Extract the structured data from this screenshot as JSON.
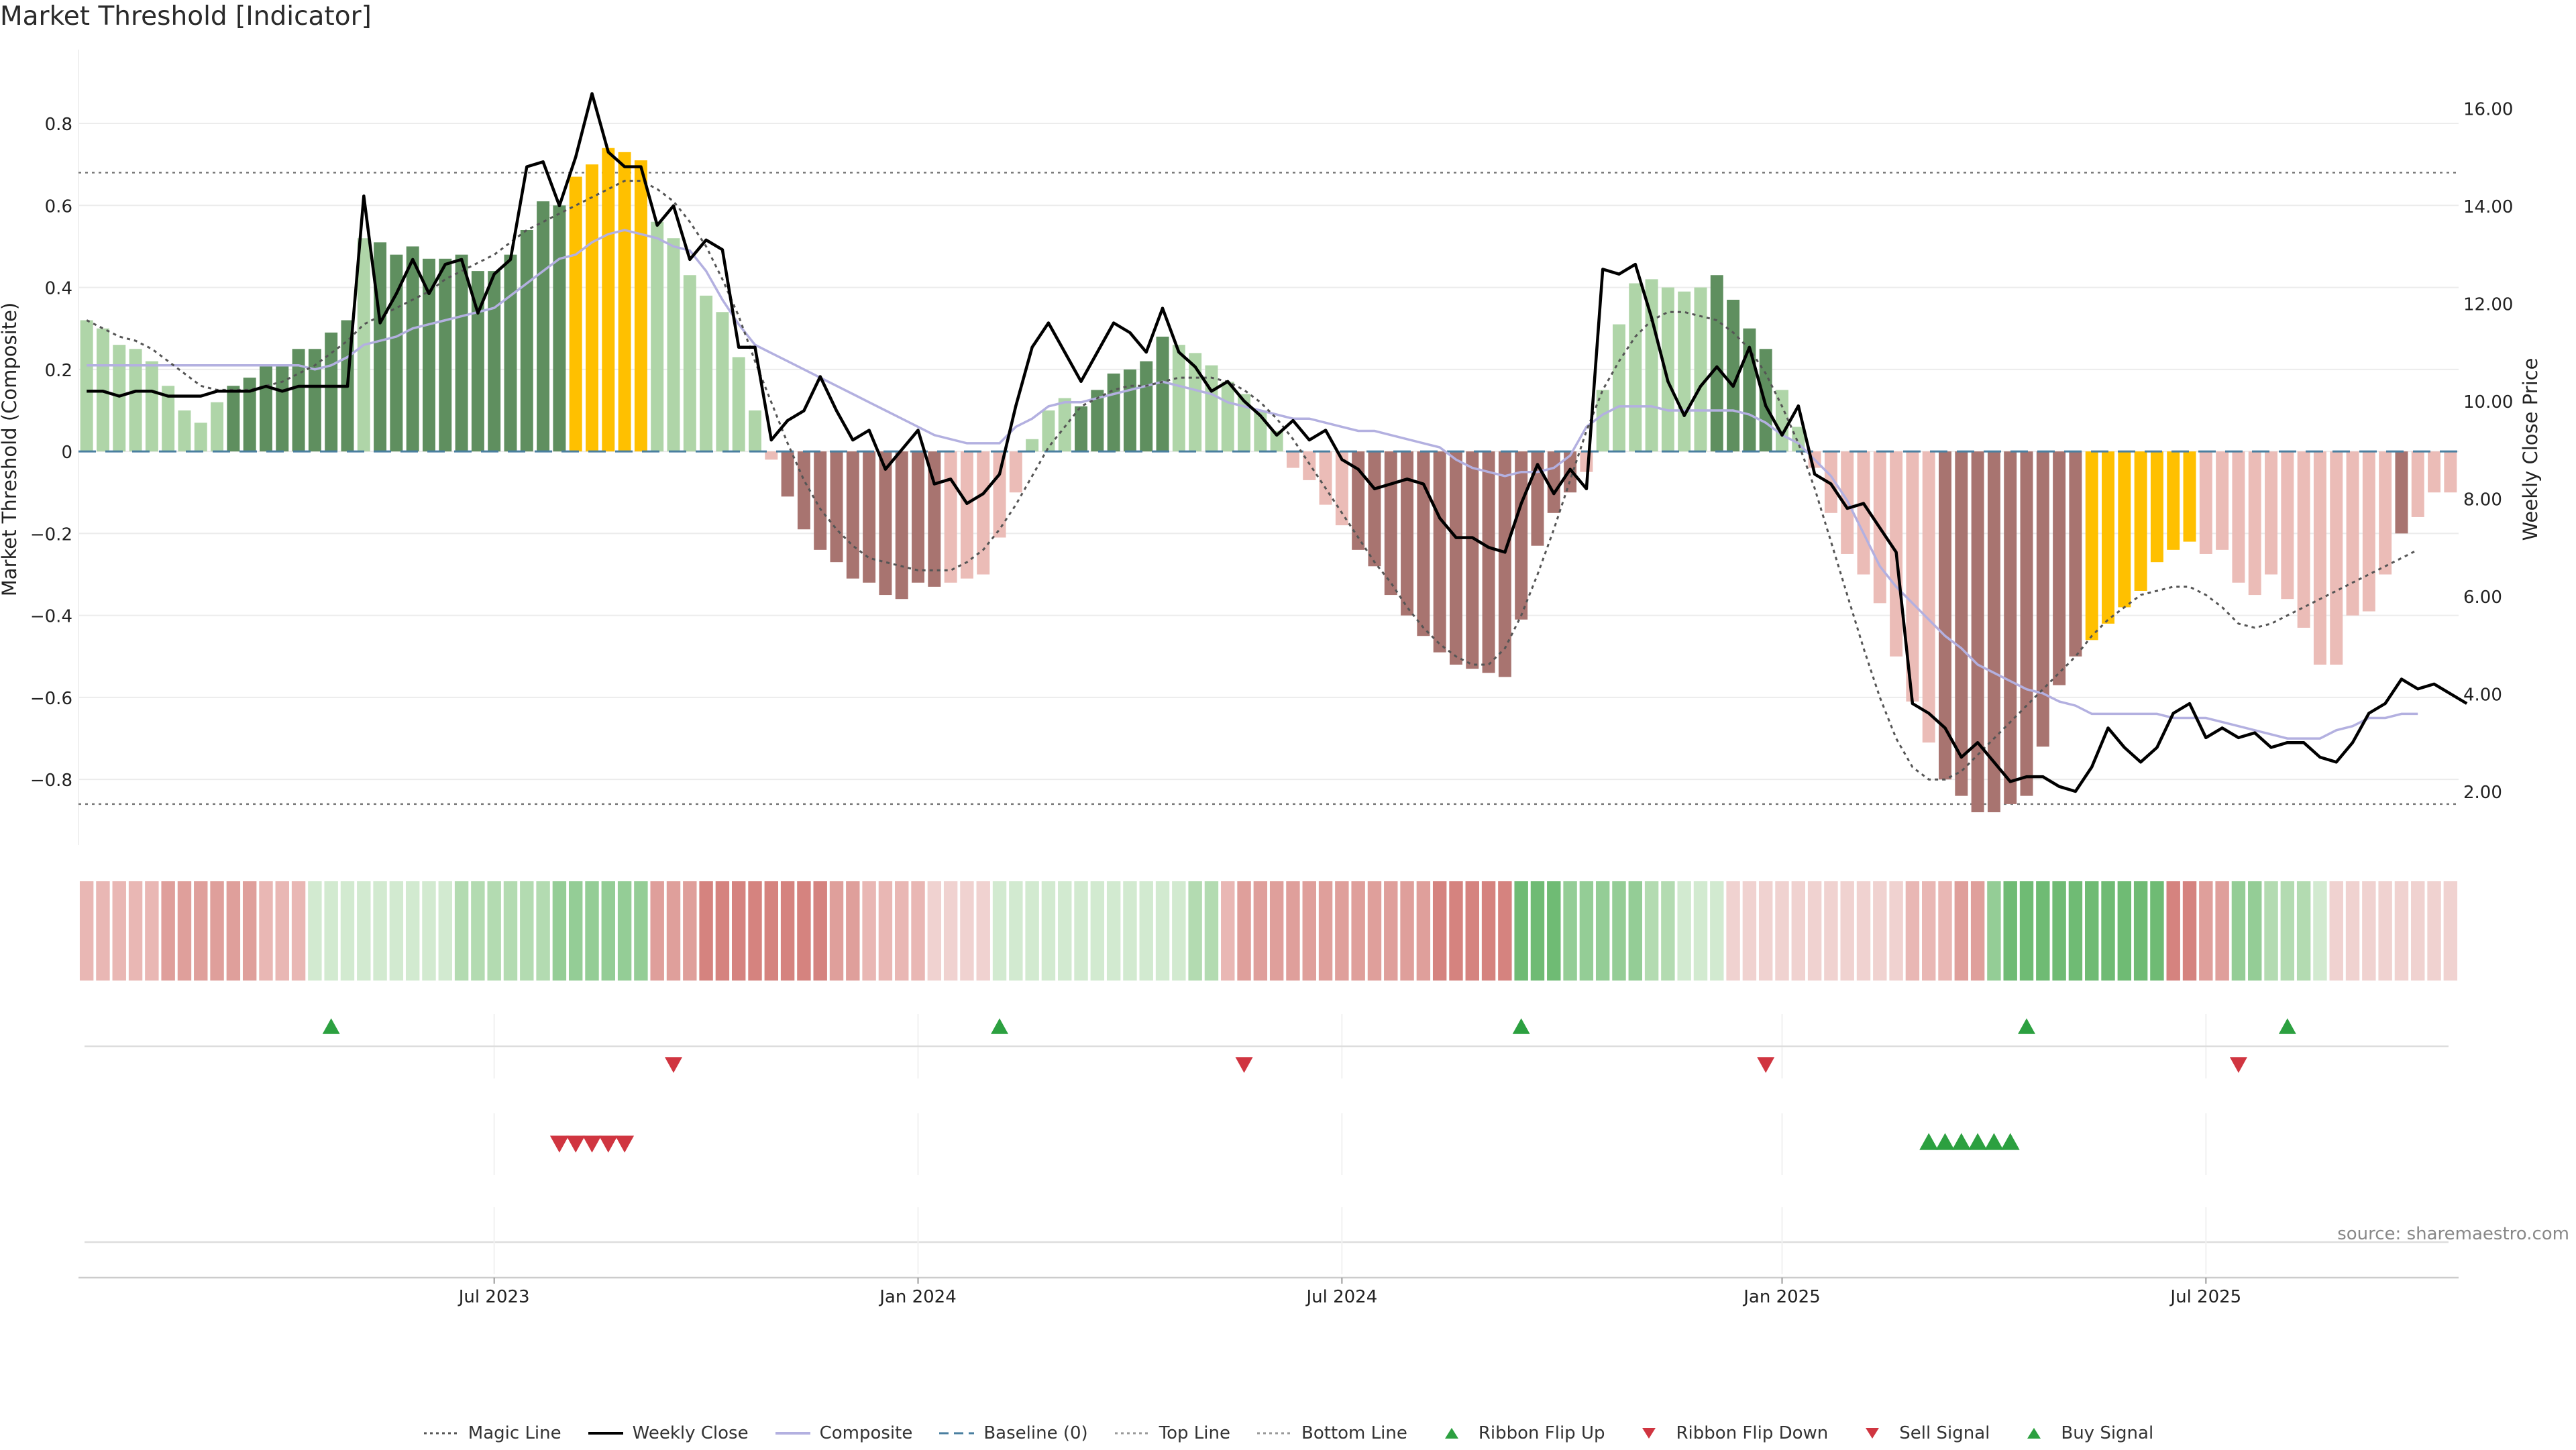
{
  "title": "Market Threshold [Indicator]",
  "source": "source: sharemaestro.com",
  "colors": {
    "bar_pos_strong": "#5f8f5f",
    "bar_pos_weak": "#afd5a8",
    "bar_neg_strong": "#a87470",
    "bar_neg_weak": "#ebbcb7",
    "bar_extreme": "#ffc000",
    "magic": "#555555",
    "close": "#000000",
    "composite": "#b3b0e0",
    "baseline": "#4a7fa0",
    "threshold": "#777777",
    "up": "#2ca040",
    "down": "#d03540"
  },
  "chart_data": {
    "type": "bar",
    "x_start": "2023-01-09",
    "x_interval": "1 week",
    "x_ticks": [
      {
        "date": "2023-07-03",
        "label": "Jul 2023"
      },
      {
        "date": "2024-01-01",
        "label": "Jan 2024"
      },
      {
        "date": "2024-07-01",
        "label": "Jul 2024"
      },
      {
        "date": "2025-01-06",
        "label": "Jan 2025"
      },
      {
        "date": "2025-07-07",
        "label": "Jul 2025"
      }
    ],
    "ylabel": "Market Threshold (Composite)",
    "ylabel_right": "Weekly Close Price",
    "ylim": [
      -0.96,
      0.98
    ],
    "ylim_right": [
      0.9,
      17.2
    ],
    "yticks": [
      {
        "v": 0.8,
        "label": "0.8"
      },
      {
        "v": 0.6,
        "label": "0.6"
      },
      {
        "v": 0.4,
        "label": "0.4"
      },
      {
        "v": 0.2,
        "label": "0.2"
      },
      {
        "v": 0,
        "label": "0"
      },
      {
        "v": -0.2,
        "label": "−0.2"
      },
      {
        "v": -0.4,
        "label": "−0.4"
      },
      {
        "v": -0.6,
        "label": "−0.6"
      },
      {
        "v": -0.8,
        "label": "−0.8"
      }
    ],
    "yticks_right": [
      {
        "v": 16,
        "label": "16.00"
      },
      {
        "v": 14,
        "label": "14.00"
      },
      {
        "v": 12,
        "label": "12.00"
      },
      {
        "v": 10,
        "label": "10.00"
      },
      {
        "v": 8,
        "label": "8.00"
      },
      {
        "v": 6,
        "label": "6.00"
      },
      {
        "v": 4,
        "label": "4.00"
      },
      {
        "v": 2,
        "label": "2.00"
      }
    ],
    "top_line": 0.68,
    "bottom_line": -0.86,
    "baseline": 0,
    "bars": [
      0.32,
      0.3,
      0.26,
      0.25,
      0.22,
      0.16,
      0.1,
      0.07,
      0.12,
      0.16,
      0.18,
      0.21,
      0.21,
      0.25,
      0.25,
      0.29,
      0.32,
      0.52,
      0.51,
      0.48,
      0.5,
      0.47,
      0.47,
      0.48,
      0.44,
      0.44,
      0.48,
      0.54,
      0.61,
      0.6,
      0.67,
      0.7,
      0.74,
      0.73,
      0.71,
      0.56,
      0.52,
      0.43,
      0.38,
      0.34,
      0.23,
      0.1,
      -0.02,
      -0.11,
      -0.19,
      -0.24,
      -0.27,
      -0.31,
      -0.32,
      -0.35,
      -0.36,
      -0.32,
      -0.33,
      -0.32,
      -0.31,
      -0.3,
      -0.21,
      -0.1,
      0.03,
      0.1,
      0.13,
      0.11,
      0.15,
      0.19,
      0.2,
      0.22,
      0.28,
      0.26,
      0.24,
      0.21,
      0.17,
      0.14,
      0.1,
      0.05,
      -0.04,
      -0.07,
      -0.13,
      -0.18,
      -0.24,
      -0.28,
      -0.35,
      -0.4,
      -0.45,
      -0.49,
      -0.52,
      -0.53,
      -0.54,
      -0.55,
      -0.41,
      -0.23,
      -0.15,
      -0.1,
      -0.05,
      0.15,
      0.31,
      0.41,
      0.42,
      0.4,
      0.39,
      0.4,
      0.43,
      0.37,
      0.3,
      0.25,
      0.15,
      0.06,
      -0.04,
      -0.15,
      -0.25,
      -0.3,
      -0.37,
      -0.5,
      -0.61,
      -0.71,
      -0.8,
      -0.84,
      -0.88,
      -0.88,
      -0.86,
      -0.84,
      -0.72,
      -0.57,
      -0.5,
      -0.46,
      -0.42,
      -0.38,
      -0.34,
      -0.27,
      -0.24,
      -0.22,
      -0.25,
      -0.24,
      -0.32,
      -0.35,
      -0.3,
      -0.36,
      -0.43,
      -0.52,
      -0.52,
      -0.4,
      -0.39,
      -0.3,
      -0.2,
      -0.16,
      -0.1,
      -0.1
    ],
    "bar_shades": "wwwwwwwwwsssssssswsssssssssssseeeeewwwwwwwwsssssssssswwwwwwwwsssssswwwwwwwwwwwsssssssssssssswwwwwwwwsssswwwwwwwwwwssssssssseeeeeeewwwwwwwwwwwwswwwwwsssswwwws",
    "magic_line": [
      0.32,
      0.3,
      0.28,
      0.27,
      0.25,
      0.22,
      0.19,
      0.16,
      0.15,
      0.15,
      0.15,
      0.16,
      0.17,
      0.19,
      0.21,
      0.24,
      0.27,
      0.31,
      0.33,
      0.35,
      0.37,
      0.39,
      0.42,
      0.44,
      0.46,
      0.48,
      0.51,
      0.54,
      0.56,
      0.58,
      0.6,
      0.62,
      0.64,
      0.66,
      0.66,
      0.64,
      0.61,
      0.56,
      0.5,
      0.42,
      0.33,
      0.22,
      0.12,
      0.02,
      -0.07,
      -0.14,
      -0.19,
      -0.23,
      -0.26,
      -0.27,
      -0.28,
      -0.29,
      -0.29,
      -0.29,
      -0.27,
      -0.24,
      -0.19,
      -0.13,
      -0.06,
      0.01,
      0.06,
      0.11,
      0.13,
      0.15,
      0.16,
      0.16,
      0.17,
      0.18,
      0.18,
      0.18,
      0.17,
      0.15,
      0.12,
      0.08,
      0.03,
      -0.03,
      -0.09,
      -0.15,
      -0.21,
      -0.27,
      -0.32,
      -0.38,
      -0.43,
      -0.47,
      -0.5,
      -0.52,
      -0.52,
      -0.48,
      -0.4,
      -0.3,
      -0.19,
      -0.07,
      0.05,
      0.15,
      0.22,
      0.28,
      0.32,
      0.34,
      0.34,
      0.33,
      0.32,
      0.29,
      0.25,
      0.19,
      0.11,
      0.02,
      -0.09,
      -0.22,
      -0.35,
      -0.48,
      -0.6,
      -0.7,
      -0.77,
      -0.8,
      -0.8,
      -0.78,
      -0.74,
      -0.7,
      -0.66,
      -0.62,
      -0.58,
      -0.54,
      -0.5,
      -0.45,
      -0.41,
      -0.38,
      -0.35,
      -0.34,
      -0.33,
      -0.33,
      -0.35,
      -0.38,
      -0.42,
      -0.43,
      -0.42,
      -0.4,
      -0.38,
      -0.36,
      -0.34,
      -0.32,
      -0.3,
      -0.28,
      -0.26,
      -0.24
    ],
    "composite": [
      0.21,
      0.21,
      0.21,
      0.21,
      0.21,
      0.21,
      0.21,
      0.21,
      0.21,
      0.21,
      0.21,
      0.21,
      0.21,
      0.21,
      0.2,
      0.21,
      0.23,
      0.26,
      0.27,
      0.28,
      0.3,
      0.31,
      0.32,
      0.33,
      0.34,
      0.35,
      0.38,
      0.41,
      0.44,
      0.47,
      0.48,
      0.51,
      0.53,
      0.54,
      0.53,
      0.52,
      0.5,
      0.49,
      0.44,
      0.37,
      0.31,
      0.26,
      0.24,
      0.22,
      0.2,
      0.18,
      0.16,
      0.14,
      0.12,
      0.1,
      0.08,
      0.06,
      0.04,
      0.03,
      0.02,
      0.02,
      0.02,
      0.06,
      0.08,
      0.11,
      0.12,
      0.12,
      0.13,
      0.14,
      0.15,
      0.16,
      0.17,
      0.16,
      0.15,
      0.14,
      0.12,
      0.11,
      0.1,
      0.09,
      0.08,
      0.08,
      0.07,
      0.06,
      0.05,
      0.05,
      0.04,
      0.03,
      0.02,
      0.01,
      -0.02,
      -0.04,
      -0.05,
      -0.06,
      -0.05,
      -0.05,
      -0.04,
      -0.01,
      0.06,
      0.09,
      0.11,
      0.11,
      0.11,
      0.1,
      0.1,
      0.1,
      0.1,
      0.1,
      0.09,
      0.07,
      0.04,
      0.02,
      -0.02,
      -0.06,
      -0.12,
      -0.2,
      -0.28,
      -0.33,
      -0.37,
      -0.41,
      -0.45,
      -0.48,
      -0.52,
      -0.54,
      -0.56,
      -0.58,
      -0.59,
      -0.61,
      -0.62,
      -0.64,
      -0.64,
      -0.64,
      -0.64,
      -0.64,
      -0.65,
      -0.65,
      -0.65,
      -0.66,
      -0.67,
      -0.68,
      -0.69,
      -0.7,
      -0.7,
      -0.7,
      -0.68,
      -0.67,
      -0.65,
      -0.65,
      -0.64,
      -0.64
    ],
    "weekly_close": [
      10.2,
      10.2,
      10.1,
      10.2,
      10.2,
      10.1,
      10.1,
      10.1,
      10.2,
      10.2,
      10.2,
      10.3,
      10.2,
      10.3,
      10.3,
      10.3,
      10.3,
      14.2,
      11.6,
      12.2,
      12.9,
      12.2,
      12.8,
      12.9,
      11.8,
      12.6,
      12.9,
      14.8,
      14.9,
      14.0,
      15.0,
      16.3,
      15.1,
      14.8,
      14.8,
      13.6,
      14.0,
      12.9,
      13.3,
      13.1,
      11.1,
      11.1,
      9.2,
      9.6,
      9.8,
      10.5,
      9.8,
      9.2,
      9.4,
      8.6,
      9.0,
      9.4,
      8.3,
      8.4,
      7.9,
      8.1,
      8.5,
      9.9,
      11.1,
      11.6,
      11.0,
      10.4,
      11.0,
      11.6,
      11.4,
      11.0,
      11.9,
      11.0,
      10.7,
      10.2,
      10.4,
      10.0,
      9.7,
      9.3,
      9.6,
      9.2,
      9.4,
      8.8,
      8.6,
      8.2,
      8.3,
      8.4,
      8.3,
      7.6,
      7.2,
      7.2,
      7.0,
      6.9,
      7.9,
      8.7,
      8.1,
      8.6,
      8.2,
      12.7,
      12.6,
      12.8,
      11.7,
      10.4,
      9.7,
      10.3,
      10.7,
      10.3,
      11.1,
      9.9,
      9.3,
      9.9,
      8.5,
      8.3,
      7.8,
      7.9,
      7.4,
      6.9,
      3.8,
      3.6,
      3.3,
      2.7,
      3.0,
      2.6,
      2.2,
      2.3,
      2.3,
      2.1,
      2.0,
      2.5,
      3.3,
      2.9,
      2.6,
      2.9,
      3.6,
      3.8,
      3.1,
      3.3,
      3.1,
      3.2,
      2.9,
      3.0,
      3.0,
      2.7,
      2.6,
      3.0,
      3.6,
      3.8,
      4.3,
      4.1,
      4.2,
      4.0,
      3.8
    ],
    "ribbon_labels": [
      "Sell Signal",
      "Buy Signal"
    ],
    "ribbon_strength": "2222233333322211111111122222233333333344444444332222111111111111111122233333333333344444444333332211111111111111222333444444444444333322211111111111112221111111",
    "ribbon_side": "nnnnnnnnnnnnnnpppppppppppppppppppppnnnnnnnnnnnnnnnnnnnnnppppppppppppppnnnnnnnnnnnnnnnnnnpppppppppppppnnnnnnnnnnnnnnnnpppppppppppnnnnpppppp",
    "ribbon_flip_up_weeks": [
      15,
      56,
      88,
      119,
      135
    ],
    "ribbon_flip_down_weeks": [
      36,
      71,
      103,
      132
    ],
    "sell_signal_weeks": [
      29,
      30,
      31,
      32,
      33
    ],
    "buy_signal_weeks": [
      113,
      114,
      115,
      116,
      117,
      118
    ],
    "legend": [
      {
        "label": "Magic Line",
        "marker": "dotted-line",
        "color": "#555555"
      },
      {
        "label": "Weekly Close",
        "marker": "solid-line",
        "color": "#000000"
      },
      {
        "label": "Composite",
        "marker": "solid-line",
        "color": "#b3b0e0"
      },
      {
        "label": "Baseline (0)",
        "marker": "dashed-line",
        "color": "#4a7fa0"
      },
      {
        "label": "Top Line",
        "marker": "dotted-line",
        "color": "#999999"
      },
      {
        "label": "Bottom Line",
        "marker": "dotted-line",
        "color": "#999999"
      },
      {
        "label": "Ribbon Flip Up",
        "marker": "triangle-up",
        "color": "#2ca040"
      },
      {
        "label": "Ribbon Flip Down",
        "marker": "triangle-down",
        "color": "#d03540"
      },
      {
        "label": "Sell Signal",
        "marker": "triangle-down",
        "color": "#d03540"
      },
      {
        "label": "Buy Signal",
        "marker": "triangle-up",
        "color": "#2ca040"
      }
    ]
  }
}
